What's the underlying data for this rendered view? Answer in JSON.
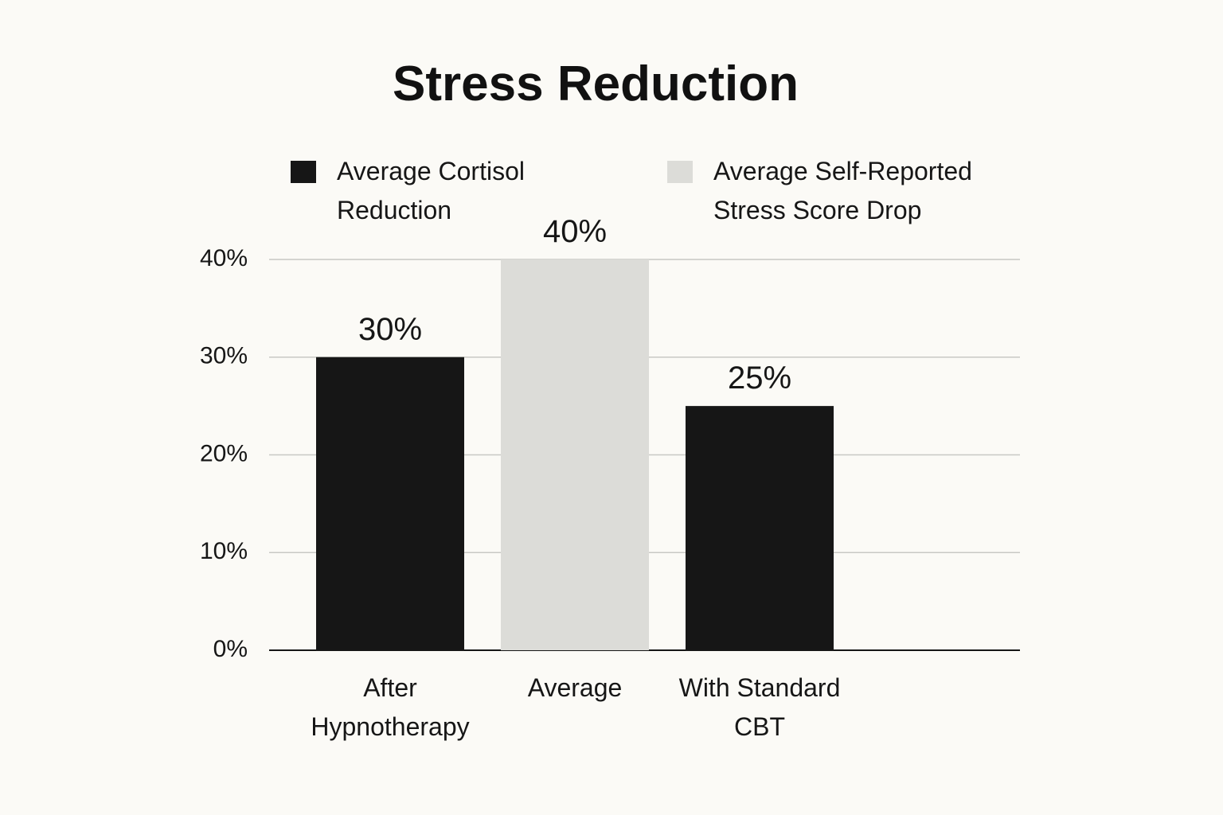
{
  "chart_data": {
    "type": "bar",
    "title": "Stress Reduction",
    "categories": [
      "After Hypnotherapy",
      "Average",
      "With Standard CBT"
    ],
    "series": [
      {
        "name": "Average Cortisol Reduction",
        "color": "#161616",
        "values": [
          30,
          null,
          25
        ],
        "value_labels": [
          "30%",
          null,
          "25%"
        ]
      },
      {
        "name": "Average Self-Reported Stress Score Drop",
        "color": "#dcdcd8",
        "values": [
          null,
          40,
          null
        ],
        "value_labels": [
          null,
          "40%",
          null
        ]
      }
    ],
    "ylim": [
      0,
      40
    ],
    "yticks": [
      {
        "value": 0,
        "label": "0%"
      },
      {
        "value": 10,
        "label": "10%"
      },
      {
        "value": 20,
        "label": "20%"
      },
      {
        "value": 30,
        "label": "30%"
      },
      {
        "value": 40,
        "label": "40%"
      }
    ],
    "grid": true,
    "legend": "top"
  }
}
